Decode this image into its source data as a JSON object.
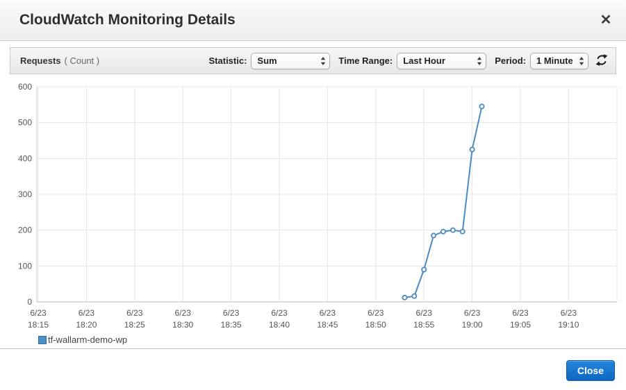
{
  "window": {
    "title": "CloudWatch Monitoring Details",
    "close_icon": "✕"
  },
  "toolbar": {
    "metric_name": "Requests",
    "metric_unit_paren": "( Count )",
    "statistic_label": "Statistic:",
    "statistic_value": "Sum",
    "time_range_label": "Time Range:",
    "time_range_value": "Last Hour",
    "period_label": "Period:",
    "period_value": "1 Minute"
  },
  "chart_data": {
    "type": "line",
    "title": "Requests (Count)",
    "xlabel": "",
    "ylabel": "",
    "ylim": [
      0,
      600
    ],
    "y_ticks": [
      0,
      100,
      200,
      300,
      400,
      500,
      600
    ],
    "x_ticks": [
      {
        "date": "6/23",
        "time": "18:15"
      },
      {
        "date": "6/23",
        "time": "18:20"
      },
      {
        "date": "6/23",
        "time": "18:25"
      },
      {
        "date": "6/23",
        "time": "18:30"
      },
      {
        "date": "6/23",
        "time": "18:35"
      },
      {
        "date": "6/23",
        "time": "18:40"
      },
      {
        "date": "6/23",
        "time": "18:45"
      },
      {
        "date": "6/23",
        "time": "18:50"
      },
      {
        "date": "6/23",
        "time": "18:55"
      },
      {
        "date": "6/23",
        "time": "19:00"
      },
      {
        "date": "6/23",
        "time": "19:05"
      },
      {
        "date": "6/23",
        "time": "19:10"
      }
    ],
    "x_domain": [
      "18:15",
      "19:15"
    ],
    "grid": true,
    "legend_position": "bottom-left",
    "series": [
      {
        "name": "tf-wallarm-demo-wp",
        "color": "#4a8bc4",
        "point_fill": "#ffffff",
        "points": [
          {
            "time": "18:53",
            "value": 12
          },
          {
            "time": "18:54",
            "value": 16
          },
          {
            "time": "18:55",
            "value": 90
          },
          {
            "time": "18:56",
            "value": 185
          },
          {
            "time": "18:57",
            "value": 196
          },
          {
            "time": "18:58",
            "value": 200
          },
          {
            "time": "18:59",
            "value": 196
          },
          {
            "time": "19:00",
            "value": 425
          },
          {
            "time": "19:01",
            "value": 545
          }
        ]
      }
    ]
  },
  "legend": {
    "items": [
      {
        "label": "tf-wallarm-demo-wp",
        "color": "#4a90c9"
      }
    ]
  },
  "footer": {
    "close_label": "Close"
  },
  "colors": {
    "accent_blue": "#1470ca",
    "line_blue": "#4a8bc4",
    "grid_gray": "#e7e7e7"
  }
}
